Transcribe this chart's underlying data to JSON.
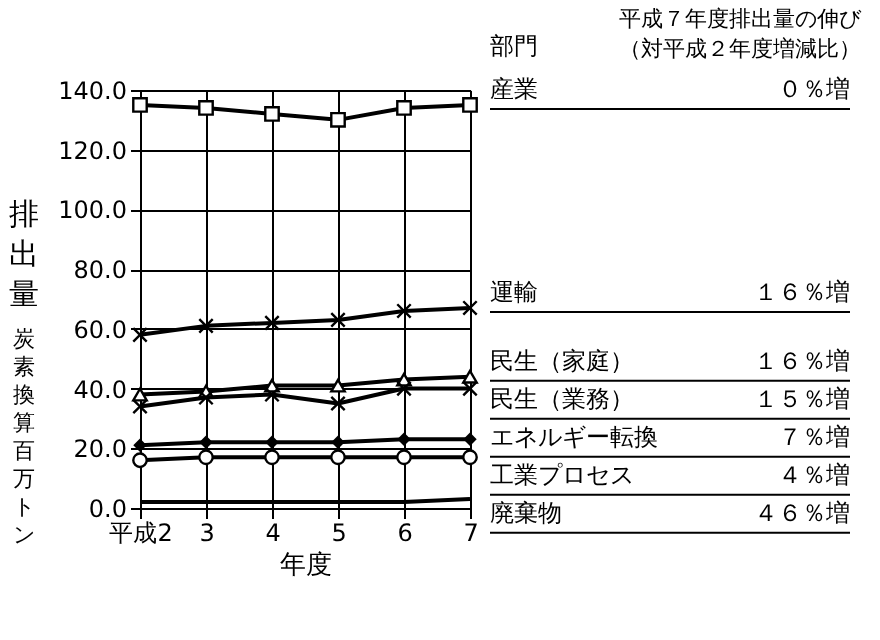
{
  "chart_data": {
    "type": "line",
    "categories": [
      "平成2",
      "3",
      "4",
      "5",
      "6",
      "7"
    ],
    "xlabel": "年度",
    "ylabel": "排出量",
    "legend_title": "部門",
    "legend": "right",
    "grid": true,
    "line_style": "solid",
    "ylim": [
      0,
      140
    ],
    "yticks": [
      {
        "value": 0,
        "label": "0.0"
      },
      {
        "value": 20,
        "label": "20.0"
      },
      {
        "value": 40,
        "label": "40.0"
      },
      {
        "value": 60,
        "label": "60.0"
      },
      {
        "value": 80,
        "label": "80.0"
      },
      {
        "value": 100,
        "label": "100.0"
      },
      {
        "value": 120,
        "label": "120.0"
      },
      {
        "value": 140,
        "label": "140.0"
      }
    ],
    "series": [
      {
        "name": "産業",
        "color": "#000000",
        "marker": "square",
        "values": [
          135,
          134,
          132,
          130,
          134,
          135
        ]
      },
      {
        "name": "運輸",
        "color": "#000000",
        "marker": "cross",
        "values": [
          58,
          61,
          62,
          63,
          66,
          67
        ]
      },
      {
        "name": "民生（家庭）",
        "color": "#000000",
        "marker": "triangle",
        "values": [
          38,
          39,
          41,
          41,
          43,
          44
        ]
      },
      {
        "name": "民生（業務）",
        "color": "#000000",
        "marker": "cross",
        "values": [
          34,
          37,
          38,
          35,
          40,
          40
        ]
      },
      {
        "name": "エネルギー転換",
        "color": "#000000",
        "marker": "diamond",
        "values": [
          21,
          22,
          22,
          22,
          23,
          23
        ]
      },
      {
        "name": "工業プロセス",
        "color": "#000000",
        "marker": "circle",
        "values": [
          16,
          17,
          17,
          17,
          17,
          17
        ]
      },
      {
        "name": "廃棄物",
        "color": "#000000",
        "marker": "none",
        "values": [
          2,
          2,
          2,
          2,
          2,
          3
        ]
      }
    ],
    "annotations": [
      "炭素換算百万トン",
      "平成７年度排出量の伸び",
      "（対平成２年度増減比）",
      "０％増",
      "１６％増",
      "１６％増",
      "１５％増",
      "７％増",
      "４％増",
      "４６％増"
    ]
  }
}
